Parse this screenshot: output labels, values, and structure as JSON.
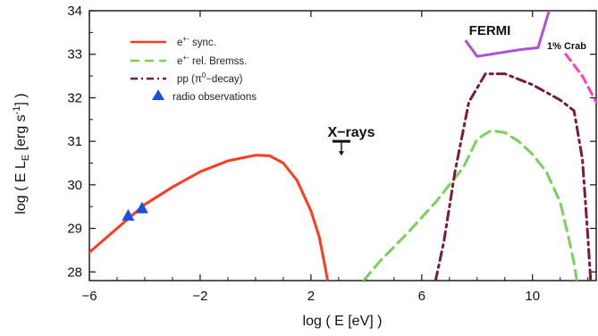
{
  "chart_data": {
    "type": "line",
    "title": "",
    "xlabel": "log ( E [eV] )",
    "ylabel": "log ( E L",
    "ylabel_sub": "E",
    "ylabel_unit": "[erg s",
    "ylabel_exp": "-1",
    "ylabel_close": "] )",
    "xlim": [
      -6,
      12.3
    ],
    "ylim": [
      27.8,
      34
    ],
    "xticks": [
      -6,
      -2,
      2,
      6,
      10
    ],
    "xtick_labels": [
      "−6",
      "−2",
      "2",
      "6",
      "10"
    ],
    "yticks": [
      28,
      29,
      30,
      31,
      32,
      33,
      34
    ],
    "ytick_labels": [
      "28",
      "29",
      "30",
      "31",
      "32",
      "33",
      "34"
    ],
    "legend_position": "top-left",
    "legend": [
      {
        "key": "sync",
        "label": "e",
        "sup": "+-",
        "rest": " sync."
      },
      {
        "key": "brems",
        "label": "e",
        "sup": "+-",
        "rest": " rel. Bremss."
      },
      {
        "key": "pp",
        "label": "pp (",
        "sup": "0",
        "pre_sup": "π",
        "rest": "−decay)"
      },
      {
        "key": "radio",
        "label": "radio observations",
        "sup": "",
        "rest": ""
      }
    ],
    "series": [
      {
        "key": "sync",
        "color": "#ff3b1f",
        "dash": "solid",
        "x": [
          -6,
          -5,
          -4,
          -3,
          -2,
          -1,
          0,
          0.5,
          1.0,
          1.5,
          2.0,
          2.3,
          2.5,
          2.6
        ],
        "y": [
          28.45,
          29.0,
          29.55,
          29.95,
          30.3,
          30.55,
          30.68,
          30.67,
          30.5,
          30.1,
          29.4,
          28.8,
          28.15,
          27.8
        ]
      },
      {
        "key": "brems",
        "color": "#77d15a",
        "dash": "long-dash",
        "x": [
          3.9,
          4.5,
          5.5,
          6.5,
          7.5,
          8.0,
          8.5,
          9.0,
          9.5,
          10.0,
          10.5,
          11.0,
          11.3,
          11.5,
          11.6
        ],
        "y": [
          27.8,
          28.25,
          28.9,
          29.6,
          30.4,
          31.05,
          31.25,
          31.2,
          31.0,
          30.7,
          30.3,
          29.6,
          28.8,
          28.2,
          27.8
        ]
      },
      {
        "key": "pp",
        "color": "#7b1a3b",
        "dash": "dash-dot",
        "x": [
          6.5,
          6.8,
          7.2,
          7.7,
          8.3,
          9.0,
          10.0,
          11.0,
          11.5,
          11.8,
          12.0,
          12.1
        ],
        "y": [
          27.8,
          28.7,
          30.3,
          31.9,
          32.55,
          32.55,
          32.3,
          31.95,
          31.7,
          30.6,
          28.8,
          27.8
        ]
      },
      {
        "key": "fermi",
        "color": "#b04fd8",
        "dash": "solid",
        "x": [
          7.6,
          8.0,
          9.5,
          10.2,
          10.6
        ],
        "y": [
          33.3,
          32.95,
          33.1,
          33.15,
          34.0
        ]
      },
      {
        "key": "crab",
        "color": "#ff3fbf",
        "dash": "dash",
        "x": [
          11.2,
          11.8,
          12.3
        ],
        "y": [
          33.0,
          32.5,
          31.9
        ]
      }
    ],
    "radio_observations": {
      "color": "#1a4fe6",
      "points": [
        {
          "x": -4.6,
          "y": 29.3
        },
        {
          "x": -4.1,
          "y": 29.47
        }
      ]
    },
    "xray_upper_limit": {
      "x": 3.1,
      "y": 31.0
    },
    "annotations": [
      {
        "key": "xrays",
        "text": "X−rays"
      },
      {
        "key": "fermi",
        "text": "FERMI"
      },
      {
        "key": "crab",
        "text": "1% Crab"
      }
    ]
  }
}
